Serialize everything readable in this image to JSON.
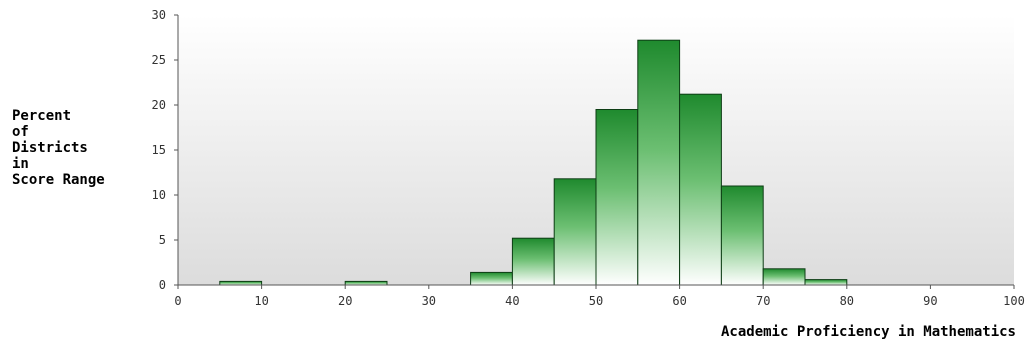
{
  "chart_data": {
    "type": "bar",
    "title": "",
    "ylabel_lines": [
      "Percent",
      "of",
      "Districts",
      "in",
      "Score Range"
    ],
    "xlabel": "Academic Proficiency in Mathematics",
    "xlim": [
      0,
      100
    ],
    "ylim": [
      0,
      30
    ],
    "x_ticks": [
      0,
      10,
      20,
      30,
      40,
      50,
      60,
      70,
      80,
      90,
      100
    ],
    "y_ticks": [
      0,
      5,
      10,
      15,
      20,
      25,
      30
    ],
    "bin_width": 5,
    "bins": [
      {
        "start": 5,
        "end": 10,
        "value": 0.4
      },
      {
        "start": 20,
        "end": 25,
        "value": 0.4
      },
      {
        "start": 35,
        "end": 40,
        "value": 1.4
      },
      {
        "start": 40,
        "end": 45,
        "value": 5.2
      },
      {
        "start": 45,
        "end": 50,
        "value": 11.8
      },
      {
        "start": 50,
        "end": 55,
        "value": 19.5
      },
      {
        "start": 55,
        "end": 60,
        "value": 27.2
      },
      {
        "start": 60,
        "end": 65,
        "value": 21.2
      },
      {
        "start": 65,
        "end": 70,
        "value": 11.0
      },
      {
        "start": 70,
        "end": 75,
        "value": 1.8
      },
      {
        "start": 75,
        "end": 80,
        "value": 0.6
      }
    ],
    "bar_color": "#1f8a2e",
    "grid": false
  }
}
